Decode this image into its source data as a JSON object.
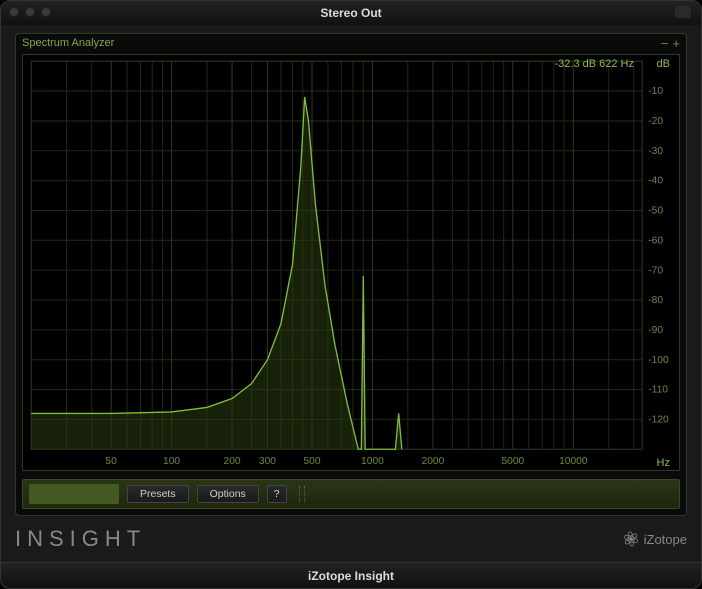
{
  "window": {
    "title": "Stereo Out",
    "footer": "iZotope Insight"
  },
  "panel": {
    "title": "Spectrum Analyzer",
    "minimize": "−",
    "maximize": "+"
  },
  "readout": {
    "text": "-32.3 dB 622 Hz"
  },
  "units": {
    "db": "dB",
    "hz": "Hz"
  },
  "toolbar": {
    "presets": "Presets",
    "options": "Options",
    "help": "?"
  },
  "brand": {
    "name": "INSIGHT",
    "company": "iZotope"
  },
  "chart": {
    "type": "spectrum",
    "background_color": "#000000",
    "grid_color": "#1e2a10",
    "border_color": "#2b3b1e",
    "curve_color": "#7fc030",
    "fill_color": "#2a3a10",
    "tick_color": "#6a8a3a",
    "x_scale": "log",
    "x_min_hz": 20,
    "x_max_hz": 22000,
    "y_min_db": -130,
    "y_max_db": 0,
    "y_ticks": [
      -10,
      -20,
      -30,
      -40,
      -50,
      -60,
      -70,
      -80,
      -90,
      -100,
      -110,
      -120
    ],
    "x_ticks": [
      50,
      100,
      200,
      300,
      500,
      1000,
      2000,
      5000,
      10000
    ],
    "x_minor": [
      30,
      40,
      60,
      70,
      80,
      90,
      150,
      250,
      350,
      400,
      450,
      600,
      700,
      800,
      900,
      1500,
      2500,
      3000,
      3500,
      4000,
      4500,
      6000,
      7000,
      8000,
      9000,
      15000,
      20000
    ],
    "cursor_hz": 622,
    "cursor_db": -32.3,
    "series": [
      {
        "hz": 20,
        "db": -118
      },
      {
        "hz": 50,
        "db": -118
      },
      {
        "hz": 100,
        "db": -117.5
      },
      {
        "hz": 150,
        "db": -116
      },
      {
        "hz": 200,
        "db": -113
      },
      {
        "hz": 250,
        "db": -108
      },
      {
        "hz": 300,
        "db": -100
      },
      {
        "hz": 350,
        "db": -88
      },
      {
        "hz": 400,
        "db": -68
      },
      {
        "hz": 440,
        "db": -35
      },
      {
        "hz": 460,
        "db": -12
      },
      {
        "hz": 480,
        "db": -20
      },
      {
        "hz": 520,
        "db": -48
      },
      {
        "hz": 580,
        "db": -75
      },
      {
        "hz": 650,
        "db": -95
      },
      {
        "hz": 750,
        "db": -115
      },
      {
        "hz": 850,
        "db": -130
      },
      {
        "hz": 880,
        "db": -130
      },
      {
        "hz": 900,
        "db": -72
      },
      {
        "hz": 920,
        "db": -130
      },
      {
        "hz": 1300,
        "db": -130
      },
      {
        "hz": 1350,
        "db": -118
      },
      {
        "hz": 1400,
        "db": -130
      }
    ]
  }
}
